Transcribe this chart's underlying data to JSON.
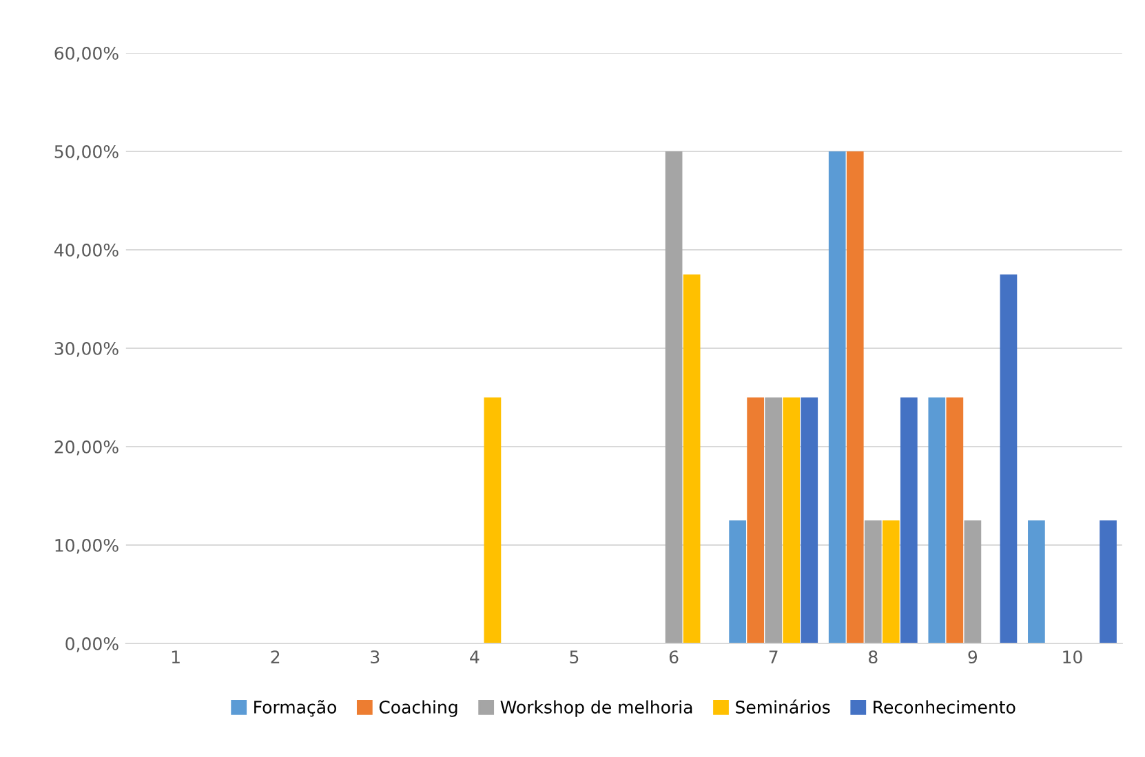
{
  "chart_data": {
    "type": "bar",
    "categories": [
      "1",
      "2",
      "3",
      "4",
      "5",
      "6",
      "7",
      "8",
      "9",
      "10"
    ],
    "series": [
      {
        "name": "Formação",
        "color": "#5b9bd5",
        "values": [
          0,
          0,
          0,
          0,
          0,
          0,
          12.5,
          50,
          25,
          12.5
        ]
      },
      {
        "name": "Coaching",
        "color": "#ed7d31",
        "values": [
          0,
          0,
          0,
          0,
          0,
          0,
          25,
          50,
          25,
          0
        ]
      },
      {
        "name": "Workshop de melhoria",
        "color": "#a5a5a5",
        "values": [
          0,
          0,
          0,
          0,
          0,
          50,
          25,
          12.5,
          12.5,
          0
        ]
      },
      {
        "name": "Seminários",
        "color": "#ffc000",
        "values": [
          0,
          0,
          0,
          25,
          0,
          37.5,
          25,
          12.5,
          0,
          0
        ]
      },
      {
        "name": "Reconhecimento",
        "color": "#4472c4",
        "values": [
          0,
          0,
          0,
          0,
          0,
          0,
          25,
          25,
          37.5,
          12.5
        ]
      }
    ],
    "ylim": [
      0,
      60
    ],
    "yticks": [
      {
        "value": 0,
        "label": "0,00%"
      },
      {
        "value": 10,
        "label": "10,00%"
      },
      {
        "value": 20,
        "label": "20,00%"
      },
      {
        "value": 30,
        "label": "30,00%"
      },
      {
        "value": 40,
        "label": "40,00%"
      },
      {
        "value": 50,
        "label": "50,00%"
      },
      {
        "value": 60,
        "label": "60,00%"
      }
    ],
    "grid": "y",
    "legend": "bottom"
  }
}
